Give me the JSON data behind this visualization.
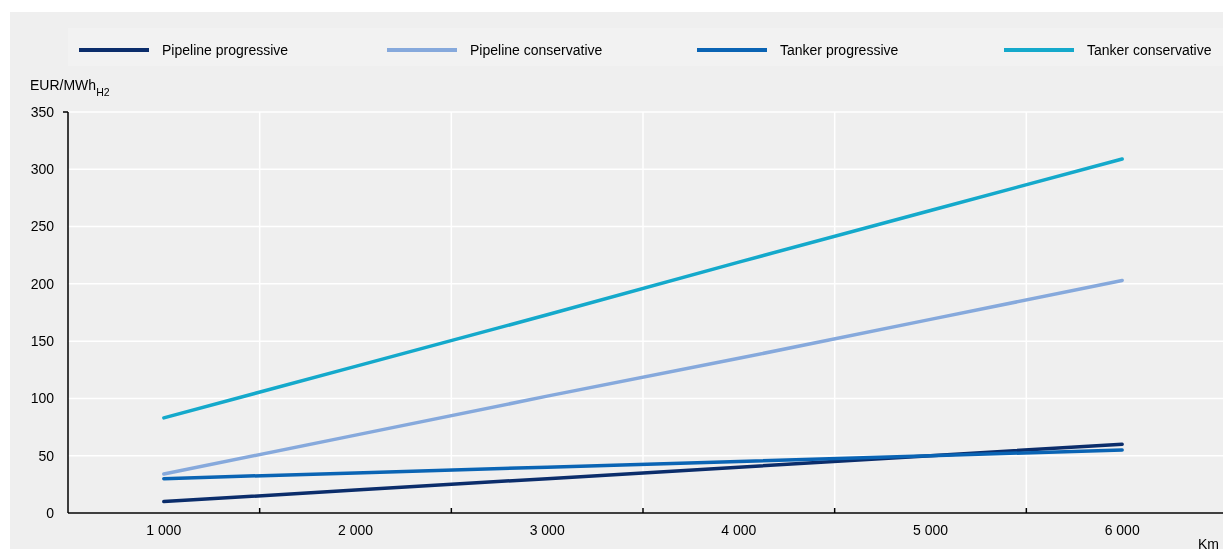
{
  "chart_data": {
    "type": "line",
    "xlabel": "Km",
    "ylabel": "EUR/MWh$_{H2}$",
    "categories": [
      "1 000",
      "2 000",
      "3 000",
      "4 000",
      "5 000",
      "6 000"
    ],
    "series": [
      {
        "name": "Pipeline progressive",
        "color": "#0b2d6b",
        "values": [
          10,
          20,
          30,
          40,
          50,
          60
        ]
      },
      {
        "name": "Pipeline conservative",
        "color": "#86a9dc",
        "values": [
          34,
          68,
          102,
          135,
          169,
          203
        ]
      },
      {
        "name": "Tanker progressive",
        "color": "#0a64b4",
        "values": [
          30,
          35,
          40,
          45,
          50,
          55
        ]
      },
      {
        "name": "Tanker conservative",
        "color": "#14a9cb",
        "values": [
          83,
          128,
          173,
          219,
          264,
          309
        ]
      }
    ],
    "ylim": [
      0,
      350
    ],
    "yticks": [
      0,
      50,
      100,
      150,
      200,
      250,
      300,
      350
    ],
    "grid": true,
    "legend": "top",
    "marker": "none",
    "line_style": "solid"
  }
}
